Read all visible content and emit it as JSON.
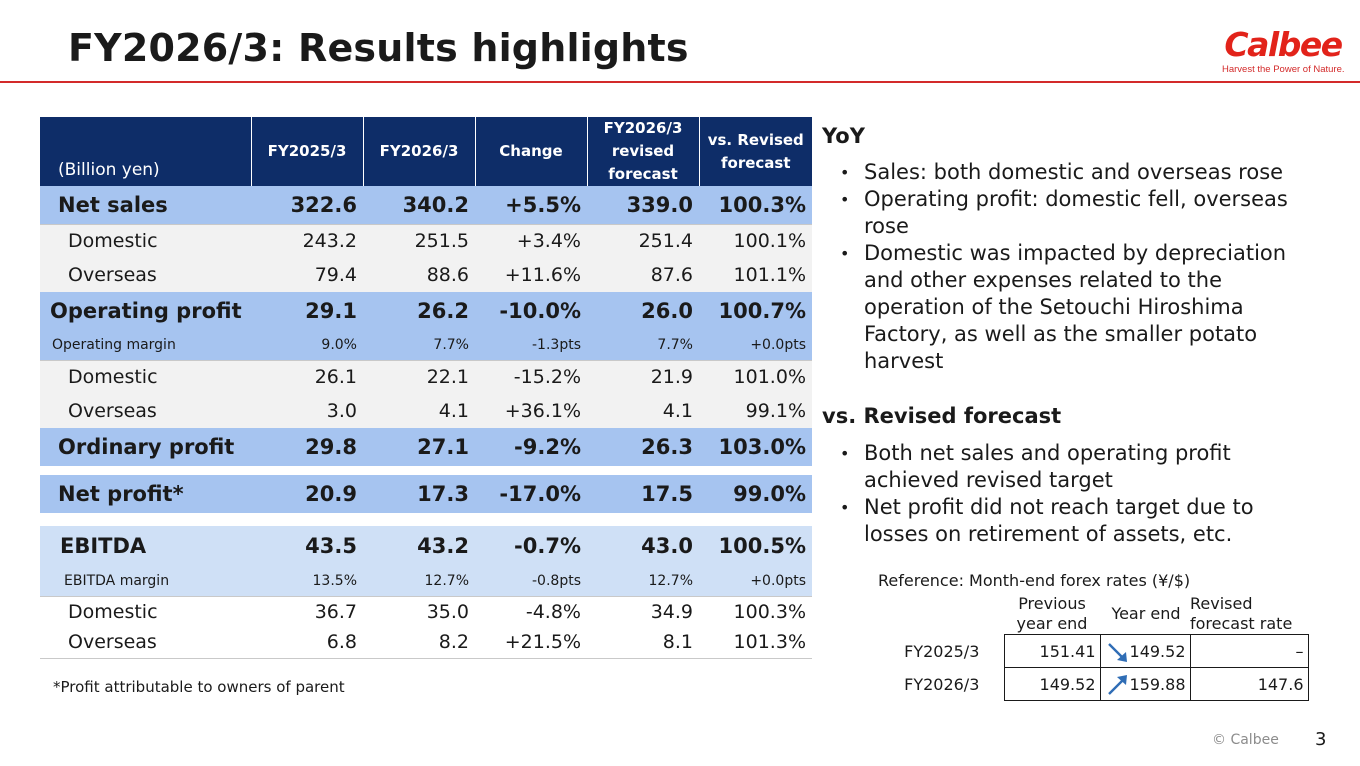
{
  "title": "FY2026/3: Results highlights",
  "logo": {
    "name": "Calbee",
    "tagline": "Harvest the Power of Nature."
  },
  "table": {
    "unit": "(Billion yen)",
    "headers": [
      "FY2025/3",
      "FY2026/3",
      "Change",
      "FY2026/3 revised forecast",
      "vs. Revised forecast"
    ],
    "header_lines": [
      [
        "FY2025/3"
      ],
      [
        "FY2026/3"
      ],
      [
        "Change"
      ],
      [
        "FY2026/3",
        "revised",
        "forecast"
      ],
      [
        "vs. Revised",
        "forecast"
      ]
    ],
    "rows": [
      {
        "label": "Net sales",
        "values": [
          "322.6",
          "340.2",
          "+5.5%",
          "339.0",
          "100.3%"
        ]
      },
      {
        "label": "Domestic",
        "values": [
          "243.2",
          "251.5",
          "+3.4%",
          "251.4",
          "100.1%"
        ]
      },
      {
        "label": "Overseas",
        "values": [
          "79.4",
          "88.6",
          "+11.6%",
          "87.6",
          "101.1%"
        ]
      },
      {
        "label": "Operating profit",
        "values": [
          "29.1",
          "26.2",
          "-10.0%",
          "26.0",
          "100.7%"
        ]
      },
      {
        "label": "Operating margin",
        "values": [
          "9.0%",
          "7.7%",
          "-1.3pts",
          "7.7%",
          "+0.0pts"
        ]
      },
      {
        "label": "Domestic",
        "values": [
          "26.1",
          "22.1",
          "-15.2%",
          "21.9",
          "101.0%"
        ]
      },
      {
        "label": "Overseas",
        "values": [
          "3.0",
          "4.1",
          "+36.1%",
          "4.1",
          "99.1%"
        ]
      },
      {
        "label": "Ordinary profit",
        "values": [
          "29.8",
          "27.1",
          "-9.2%",
          "26.3",
          "103.0%"
        ]
      },
      {
        "label": "Net profit*",
        "values": [
          "20.9",
          "17.3",
          "-17.0%",
          "17.5",
          "99.0%"
        ]
      },
      {
        "label": "EBITDA",
        "values": [
          "43.5",
          "43.2",
          "-0.7%",
          "43.0",
          "100.5%"
        ]
      },
      {
        "label": "EBITDA margin",
        "values": [
          "13.5%",
          "12.7%",
          "-0.8pts",
          "12.7%",
          "+0.0pts"
        ]
      },
      {
        "label": "Domestic",
        "values": [
          "36.7",
          "35.0",
          "-4.8%",
          "34.9",
          "100.3%"
        ]
      },
      {
        "label": "Overseas",
        "values": [
          "6.8",
          "8.2",
          "+21.5%",
          "8.1",
          "101.3%"
        ]
      }
    ],
    "footnote": "*Profit attributable to owners of parent"
  },
  "yoy": {
    "heading": "YoY",
    "bullets": [
      "Sales: both domestic and overseas rose",
      "Operating profit: domestic fell, overseas rose",
      "Domestic was impacted by depreciation and other expenses related to the operation of the Setouchi Hiroshima Factory, as well as the smaller potato harvest"
    ]
  },
  "vs_forecast": {
    "heading": "vs. Revised forecast",
    "bullets": [
      "Both net sales and operating profit achieved revised target",
      "Net profit did not reach target due to losses on retirement of assets, etc."
    ]
  },
  "forex": {
    "title": "Reference: Month-end forex rates (¥/$)",
    "col_previous": [
      "Previous",
      "year end"
    ],
    "col_year_end": "Year end",
    "col_revised": [
      "Revised",
      "forecast rate"
    ],
    "rows": [
      {
        "label": "FY2025/3",
        "previous": "151.41",
        "year_end": "149.52",
        "revised": "–",
        "trend": "down"
      },
      {
        "label": "FY2026/3",
        "previous": "149.52",
        "year_end": "159.88",
        "revised": "147.6",
        "trend": "up"
      }
    ],
    "arrow_colors": {
      "down": "#2f6db5",
      "up": "#2f6db5"
    }
  },
  "colors": {
    "header_navy": "#0e2d68",
    "bold_row_blue": "#a6c4f0",
    "ebitda_blue": "#cfe0f6",
    "accent_red": "#d32a2a"
  },
  "footer": {
    "copyright": "© Calbee",
    "page": "3"
  }
}
